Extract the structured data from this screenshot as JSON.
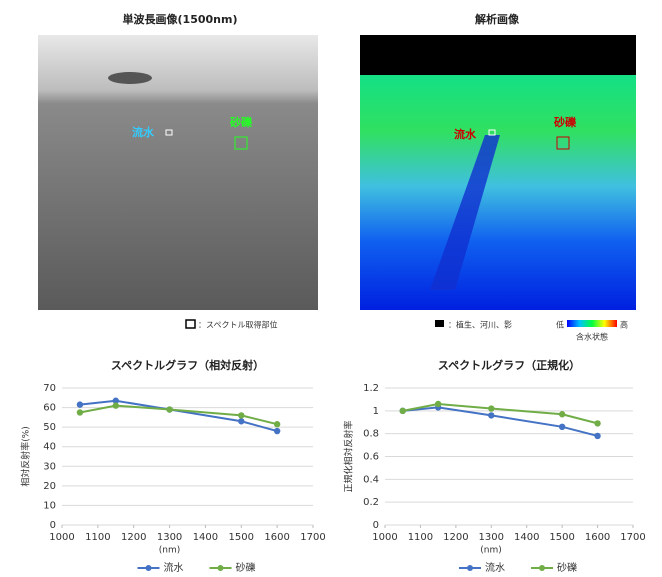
{
  "images": [
    {
      "title": "単波長画像(1500nm)",
      "labels": [
        "流水",
        "砂礫"
      ],
      "legend": "：スペクトル取得部位"
    },
    {
      "title": "解析画像",
      "labels": [
        "流水",
        "砂礫"
      ],
      "legend": "：植生、河川、影",
      "scale_low": "低",
      "scale_high": "高",
      "scale_label": "含水状態"
    }
  ],
  "chart_data": [
    {
      "type": "line",
      "title": "スペクトルグラフ（相対反射）",
      "y_label": "相対反射率(%)",
      "x_label": "(nm)",
      "x": [
        1050,
        1150,
        1300,
        1500,
        1600
      ],
      "xlim": [
        1000,
        1700
      ],
      "xticks": [
        1000,
        1100,
        1200,
        1300,
        1400,
        1500,
        1600,
        1700
      ],
      "ylim": [
        0,
        70
      ],
      "yticks": [
        0,
        10,
        20,
        30,
        40,
        50,
        60,
        70
      ],
      "grid": true,
      "series": [
        {
          "name": "流水",
          "color": "#4472c4",
          "values": [
            61.5,
            63.5,
            59,
            53,
            48
          ]
        },
        {
          "name": "砂礫",
          "color": "#70ad47",
          "values": [
            57.5,
            61,
            59,
            56,
            51.5
          ]
        }
      ]
    },
    {
      "type": "line",
      "title": "スペクトルグラフ（正規化）",
      "y_label": "正規化相対反射率",
      "x_label": "(nm)",
      "x": [
        1050,
        1150,
        1300,
        1500,
        1600
      ],
      "xlim": [
        1000,
        1700
      ],
      "xticks": [
        1000,
        1100,
        1200,
        1300,
        1400,
        1500,
        1600,
        1700
      ],
      "ylim": [
        0,
        1.2
      ],
      "yticks": [
        0,
        0.2,
        0.4,
        0.6,
        0.8,
        1,
        1.2
      ],
      "grid": true,
      "series": [
        {
          "name": "流水",
          "color": "#4472c4",
          "values": [
            1,
            1.03,
            0.96,
            0.86,
            0.78
          ]
        },
        {
          "name": "砂礫",
          "color": "#70ad47",
          "values": [
            1,
            1.06,
            1.02,
            0.97,
            0.89
          ]
        }
      ]
    }
  ]
}
